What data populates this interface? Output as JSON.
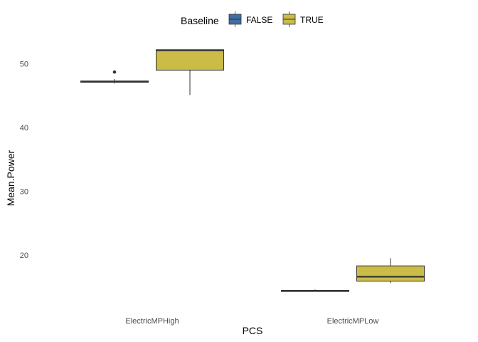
{
  "chart_data": {
    "type": "boxplot",
    "xlabel": "PCS",
    "ylabel": "Mean.Power",
    "categories": [
      "ElectricMPHigh",
      "ElectricMPLow"
    ],
    "yticks": [
      20,
      30,
      40,
      50
    ],
    "ylim": [
      13,
      55
    ],
    "grid": false,
    "legend": {
      "title": "Baseline",
      "placement": "top",
      "entries": [
        {
          "label": "FALSE",
          "color": "#3f6ea5"
        },
        {
          "label": "TRUE",
          "color": "#cbbc47"
        }
      ]
    },
    "series": [
      {
        "name": "FALSE",
        "color": "#3f6ea5",
        "boxes": [
          {
            "category": "ElectricMPHigh",
            "min": 46.9,
            "q1": 47.1,
            "median": 47.2,
            "q3": 47.3,
            "max": 47.6,
            "outliers": [
              48.7
            ]
          },
          {
            "category": "ElectricMPLow",
            "min": 14.3,
            "q1": 14.35,
            "median": 14.4,
            "q3": 14.45,
            "max": 14.6,
            "outliers": []
          }
        ]
      },
      {
        "name": "TRUE",
        "color": "#cbbc47",
        "boxes": [
          {
            "category": "ElectricMPHigh",
            "min": 45.1,
            "q1": 49.0,
            "median": 52.1,
            "q3": 52.2,
            "max": 52.2,
            "outliers": []
          },
          {
            "category": "ElectricMPLow",
            "min": 15.6,
            "q1": 15.9,
            "median": 16.6,
            "q3": 18.3,
            "max": 19.5,
            "outliers": []
          }
        ]
      }
    ]
  }
}
